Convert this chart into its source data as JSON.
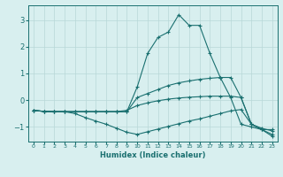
{
  "xlabel": "Humidex (Indice chaleur)",
  "background_color": "#d8efef",
  "grid_color": "#b8d8d8",
  "line_color": "#1a7070",
  "xlim": [
    -0.5,
    23.5
  ],
  "ylim": [
    -1.55,
    3.55
  ],
  "yticks": [
    -1,
    0,
    1,
    2,
    3
  ],
  "xticks": [
    0,
    1,
    2,
    3,
    4,
    5,
    6,
    7,
    8,
    9,
    10,
    11,
    12,
    13,
    14,
    15,
    16,
    17,
    18,
    19,
    20,
    21,
    22,
    23
  ],
  "lines": [
    {
      "x": [
        0,
        1,
        2,
        3,
        4,
        5,
        6,
        7,
        8,
        9,
        10,
        11,
        12,
        13,
        14,
        15,
        16,
        17,
        18,
        19,
        20,
        21,
        22,
        23
      ],
      "y": [
        -0.38,
        -0.42,
        -0.43,
        -0.43,
        -0.43,
        -0.43,
        -0.43,
        -0.43,
        -0.43,
        -0.43,
        0.5,
        1.75,
        2.35,
        2.55,
        3.2,
        2.8,
        2.8,
        1.75,
        0.85,
        0.1,
        -0.9,
        -1.0,
        -1.1,
        -1.1
      ]
    },
    {
      "x": [
        0,
        1,
        2,
        3,
        4,
        5,
        6,
        7,
        8,
        9,
        10,
        11,
        12,
        13,
        14,
        15,
        16,
        17,
        18,
        19,
        20,
        21,
        22,
        23
      ],
      "y": [
        -0.38,
        -0.42,
        -0.43,
        -0.43,
        -0.43,
        -0.43,
        -0.43,
        -0.43,
        -0.43,
        -0.43,
        0.1,
        0.25,
        0.4,
        0.55,
        0.65,
        0.72,
        0.78,
        0.82,
        0.85,
        0.85,
        0.1,
        -0.9,
        -1.05,
        -1.15
      ]
    },
    {
      "x": [
        0,
        1,
        2,
        3,
        4,
        5,
        6,
        7,
        8,
        9,
        10,
        11,
        12,
        13,
        14,
        15,
        16,
        17,
        18,
        19,
        20,
        21,
        22,
        23
      ],
      "y": [
        -0.38,
        -0.42,
        -0.43,
        -0.43,
        -0.43,
        -0.43,
        -0.43,
        -0.43,
        -0.43,
        -0.38,
        -0.2,
        -0.1,
        -0.02,
        0.04,
        0.08,
        0.11,
        0.13,
        0.15,
        0.15,
        0.15,
        0.1,
        -0.9,
        -1.1,
        -1.28
      ]
    },
    {
      "x": [
        0,
        1,
        2,
        3,
        4,
        5,
        6,
        7,
        8,
        9,
        10,
        11,
        12,
        13,
        14,
        15,
        16,
        17,
        18,
        19,
        20,
        21,
        22,
        23
      ],
      "y": [
        -0.38,
        -0.42,
        -0.43,
        -0.43,
        -0.5,
        -0.65,
        -0.78,
        -0.9,
        -1.05,
        -1.2,
        -1.28,
        -1.18,
        -1.08,
        -0.98,
        -0.88,
        -0.78,
        -0.7,
        -0.6,
        -0.5,
        -0.4,
        -0.35,
        -0.9,
        -1.1,
        -1.35
      ]
    }
  ]
}
